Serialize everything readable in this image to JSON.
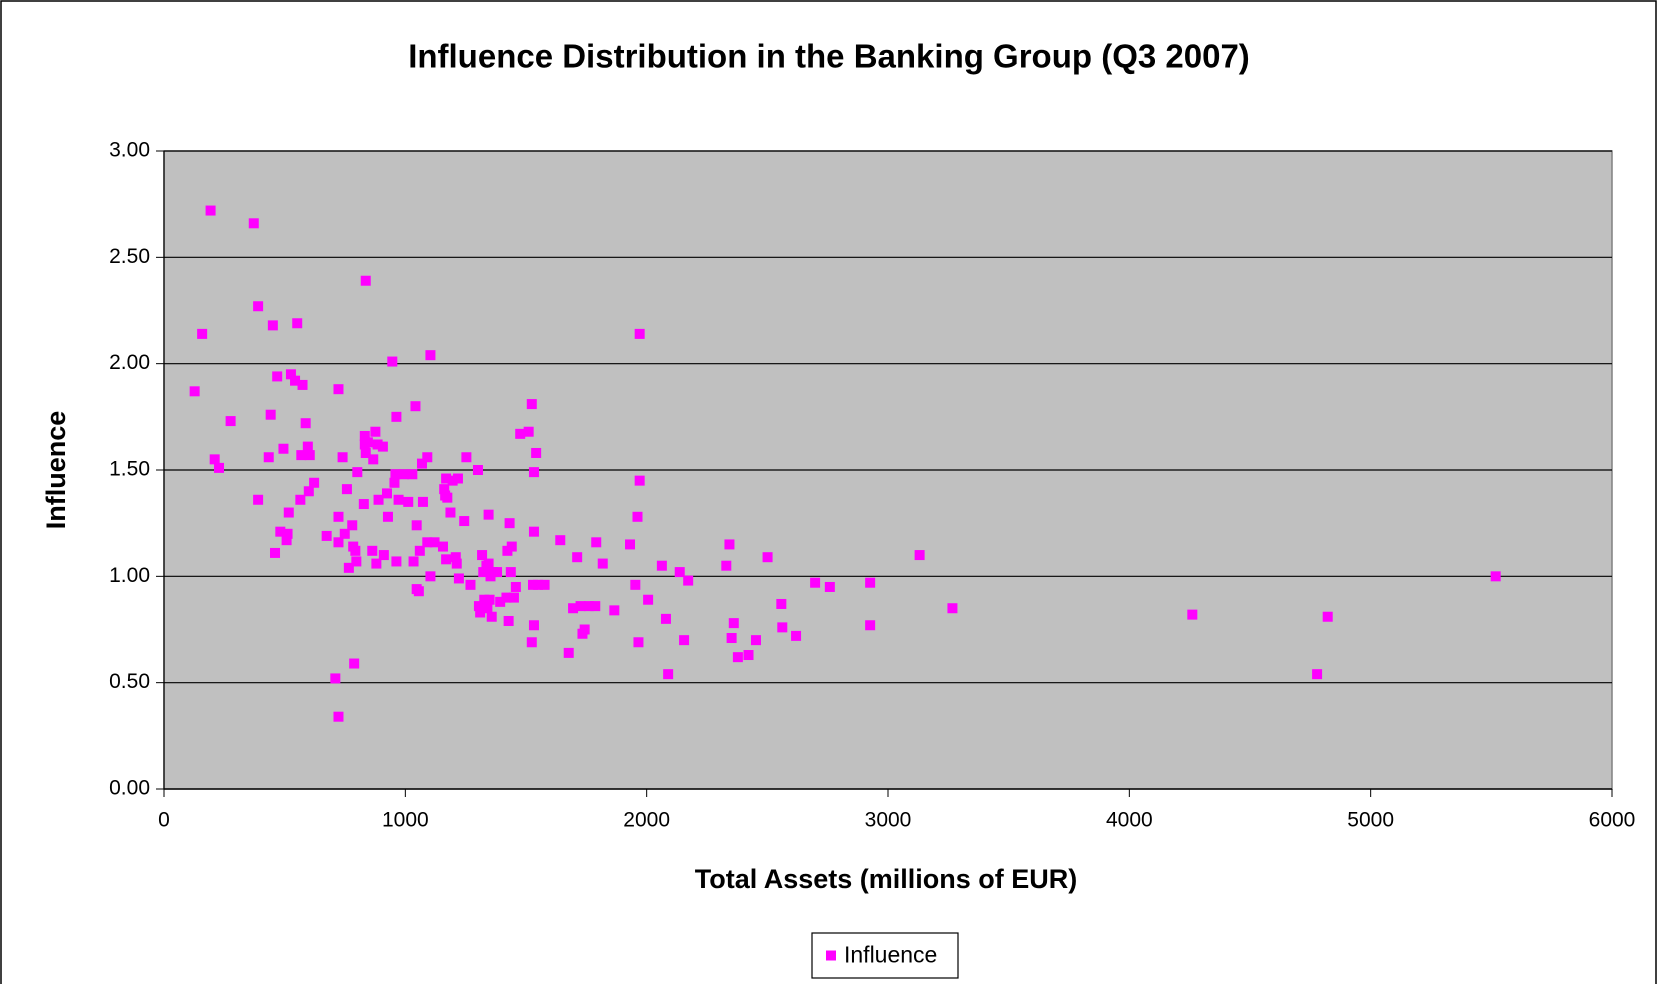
{
  "chart_data": {
    "type": "scatter",
    "title": "Influence Distribution in the Banking Group (Q3 2007)",
    "x_label": "Total Assets (millions of EUR)",
    "y_label": "Influence",
    "series": [
      {
        "name": "Influence",
        "color": "#ff00ff",
        "x": [
          127,
          158,
          193,
          210,
          228,
          276,
          372,
          390,
          390,
          434,
          442,
          451,
          460,
          469,
          482,
          495,
          508,
          512,
          517,
          526,
          543,
          552,
          565,
          569,
          574,
          587,
          596,
          600,
          604,
          622,
          674,
          710,
          723,
          723,
          723,
          723,
          740,
          749,
          758,
          766,
          780,
          784,
          788,
          793,
          797,
          801,
          828,
          832,
          832,
          836,
          836,
          845,
          863,
          867,
          876,
          880,
          885,
          889,
          907,
          911,
          924,
          928,
          946,
          955,
          959,
          963,
          963,
          972,
          994,
          1012,
          1029,
          1034,
          1042,
          1047,
          1047,
          1056,
          1060,
          1069,
          1073,
          1091,
          1091,
          1104,
          1104,
          1121,
          1156,
          1161,
          1165,
          1169,
          1169,
          1174,
          1187,
          1196,
          1209,
          1213,
          1218,
          1222,
          1244,
          1253,
          1270,
          1301,
          1305,
          1310,
          1318,
          1323,
          1327,
          1336,
          1340,
          1345,
          1345,
          1349,
          1353,
          1358,
          1362,
          1380,
          1393,
          1419,
          1423,
          1428,
          1432,
          1437,
          1441,
          1450,
          1458,
          1476,
          1511,
          1524,
          1524,
          1529,
          1533,
          1533,
          1533,
          1542,
          1550,
          1577,
          1642,
          1677,
          1695,
          1712,
          1726,
          1734,
          1743,
          1761,
          1787,
          1791,
          1818,
          1866,
          1931,
          1953,
          1962,
          1966,
          1971,
          1971,
          2006,
          2063,
          2080,
          2089,
          2137,
          2155,
          2172,
          2330,
          2343,
          2352,
          2361,
          2378,
          2422,
          2453,
          2501,
          2558,
          2562,
          2619,
          2698,
          2759,
          2926,
          2926,
          3131,
          3267,
          4261,
          4778,
          4822,
          5518
        ],
        "values": [
          1.87,
          2.14,
          2.72,
          1.55,
          1.51,
          1.73,
          2.66,
          2.27,
          1.36,
          1.56,
          1.76,
          2.18,
          1.11,
          1.94,
          1.21,
          1.6,
          1.17,
          1.2,
          1.3,
          1.95,
          1.92,
          2.19,
          1.36,
          1.57,
          1.9,
          1.72,
          1.61,
          1.4,
          1.57,
          1.44,
          1.19,
          0.52,
          1.88,
          1.28,
          1.16,
          0.34,
          1.56,
          1.2,
          1.41,
          1.04,
          1.24,
          1.14,
          0.59,
          1.12,
          1.07,
          1.49,
          1.34,
          1.66,
          1.62,
          2.39,
          1.58,
          1.63,
          1.12,
          1.55,
          1.68,
          1.06,
          1.62,
          1.36,
          1.61,
          1.1,
          1.39,
          1.28,
          2.01,
          1.44,
          1.48,
          1.75,
          1.07,
          1.36,
          1.48,
          1.35,
          1.48,
          1.07,
          1.8,
          1.24,
          0.94,
          0.93,
          1.12,
          1.53,
          1.35,
          1.56,
          1.16,
          2.04,
          1.0,
          1.16,
          1.14,
          1.41,
          1.38,
          1.46,
          1.08,
          1.37,
          1.3,
          1.45,
          1.09,
          1.06,
          1.46,
          0.99,
          1.26,
          1.56,
          0.96,
          1.5,
          0.86,
          0.83,
          1.1,
          1.02,
          0.89,
          1.05,
          0.85,
          1.29,
          1.06,
          0.89,
          1.0,
          0.81,
          1.02,
          1.02,
          0.88,
          0.9,
          1.12,
          0.79,
          1.25,
          1.02,
          1.14,
          0.9,
          0.95,
          1.67,
          1.68,
          1.81,
          0.69,
          0.96,
          1.49,
          1.21,
          0.77,
          1.58,
          0.96,
          0.96,
          1.17,
          0.64,
          0.85,
          1.09,
          0.86,
          0.73,
          0.75,
          0.86,
          0.86,
          1.16,
          1.06,
          0.84,
          1.15,
          0.96,
          1.28,
          0.69,
          2.14,
          1.45,
          0.89,
          1.05,
          0.8,
          0.54,
          1.02,
          0.7,
          0.98,
          1.05,
          1.15,
          0.71,
          0.78,
          0.62,
          0.63,
          0.7,
          1.09,
          0.87,
          0.76,
          0.72,
          0.97,
          0.95,
          0.97,
          0.77,
          1.1,
          0.85,
          0.82,
          0.54,
          0.81,
          1.0
        ]
      }
    ],
    "xlim": [
      0,
      6000
    ],
    "xticks": [
      0,
      1000,
      2000,
      3000,
      4000,
      5000,
      6000
    ],
    "ylim": [
      0,
      3
    ],
    "yticks": [
      {
        "value": 0,
        "label": "0.00"
      },
      {
        "value": 0.5,
        "label": "0.50"
      },
      {
        "value": 1,
        "label": "1.00"
      },
      {
        "value": 1.5,
        "label": "1.50"
      },
      {
        "value": 2,
        "label": "2.00"
      },
      {
        "value": 2.5,
        "label": "2.50"
      },
      {
        "value": 3,
        "label": "3.00"
      }
    ],
    "grid": true,
    "plot_background": "#c0c0c0",
    "legend": "bottom"
  }
}
